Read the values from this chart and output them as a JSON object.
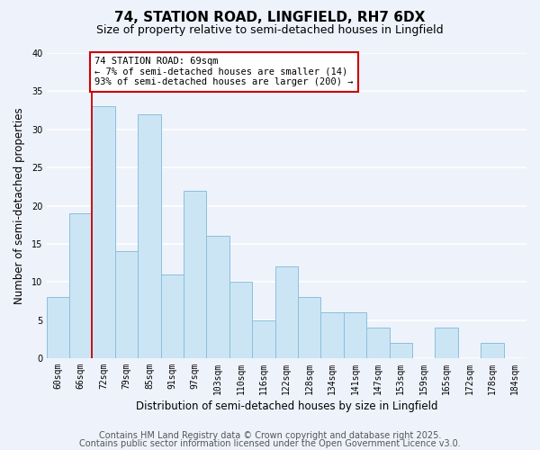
{
  "title": "74, STATION ROAD, LINGFIELD, RH7 6DX",
  "subtitle": "Size of property relative to semi-detached houses in Lingfield",
  "xlabel": "Distribution of semi-detached houses by size in Lingfield",
  "ylabel": "Number of semi-detached properties",
  "categories": [
    "60sqm",
    "66sqm",
    "72sqm",
    "79sqm",
    "85sqm",
    "91sqm",
    "97sqm",
    "103sqm",
    "110sqm",
    "116sqm",
    "122sqm",
    "128sqm",
    "134sqm",
    "141sqm",
    "147sqm",
    "153sqm",
    "159sqm",
    "165sqm",
    "172sqm",
    "178sqm",
    "184sqm"
  ],
  "values": [
    8,
    19,
    33,
    14,
    32,
    11,
    22,
    16,
    10,
    5,
    12,
    8,
    6,
    6,
    4,
    2,
    0,
    4,
    0,
    2,
    0
  ],
  "bar_color": "#cce5f5",
  "bar_edge_color": "#89c0db",
  "property_line_color": "#cc0000",
  "property_line_x": 1.5,
  "ylim": [
    0,
    40
  ],
  "yticks": [
    0,
    5,
    10,
    15,
    20,
    25,
    30,
    35,
    40
  ],
  "annotation_text": "74 STATION ROAD: 69sqm\n← 7% of semi-detached houses are smaller (14)\n93% of semi-detached houses are larger (200) →",
  "annotation_box_color": "#ffffff",
  "annotation_box_edge": "#cc0000",
  "footer_line1": "Contains HM Land Registry data © Crown copyright and database right 2025.",
  "footer_line2": "Contains public sector information licensed under the Open Government Licence v3.0.",
  "background_color": "#eef2fb",
  "plot_bg_color": "#eef2fb",
  "grid_color": "#ffffff",
  "title_fontsize": 11,
  "subtitle_fontsize": 9,
  "axis_label_fontsize": 8.5,
  "tick_fontsize": 7,
  "annotation_fontsize": 7.5,
  "footer_fontsize": 7
}
